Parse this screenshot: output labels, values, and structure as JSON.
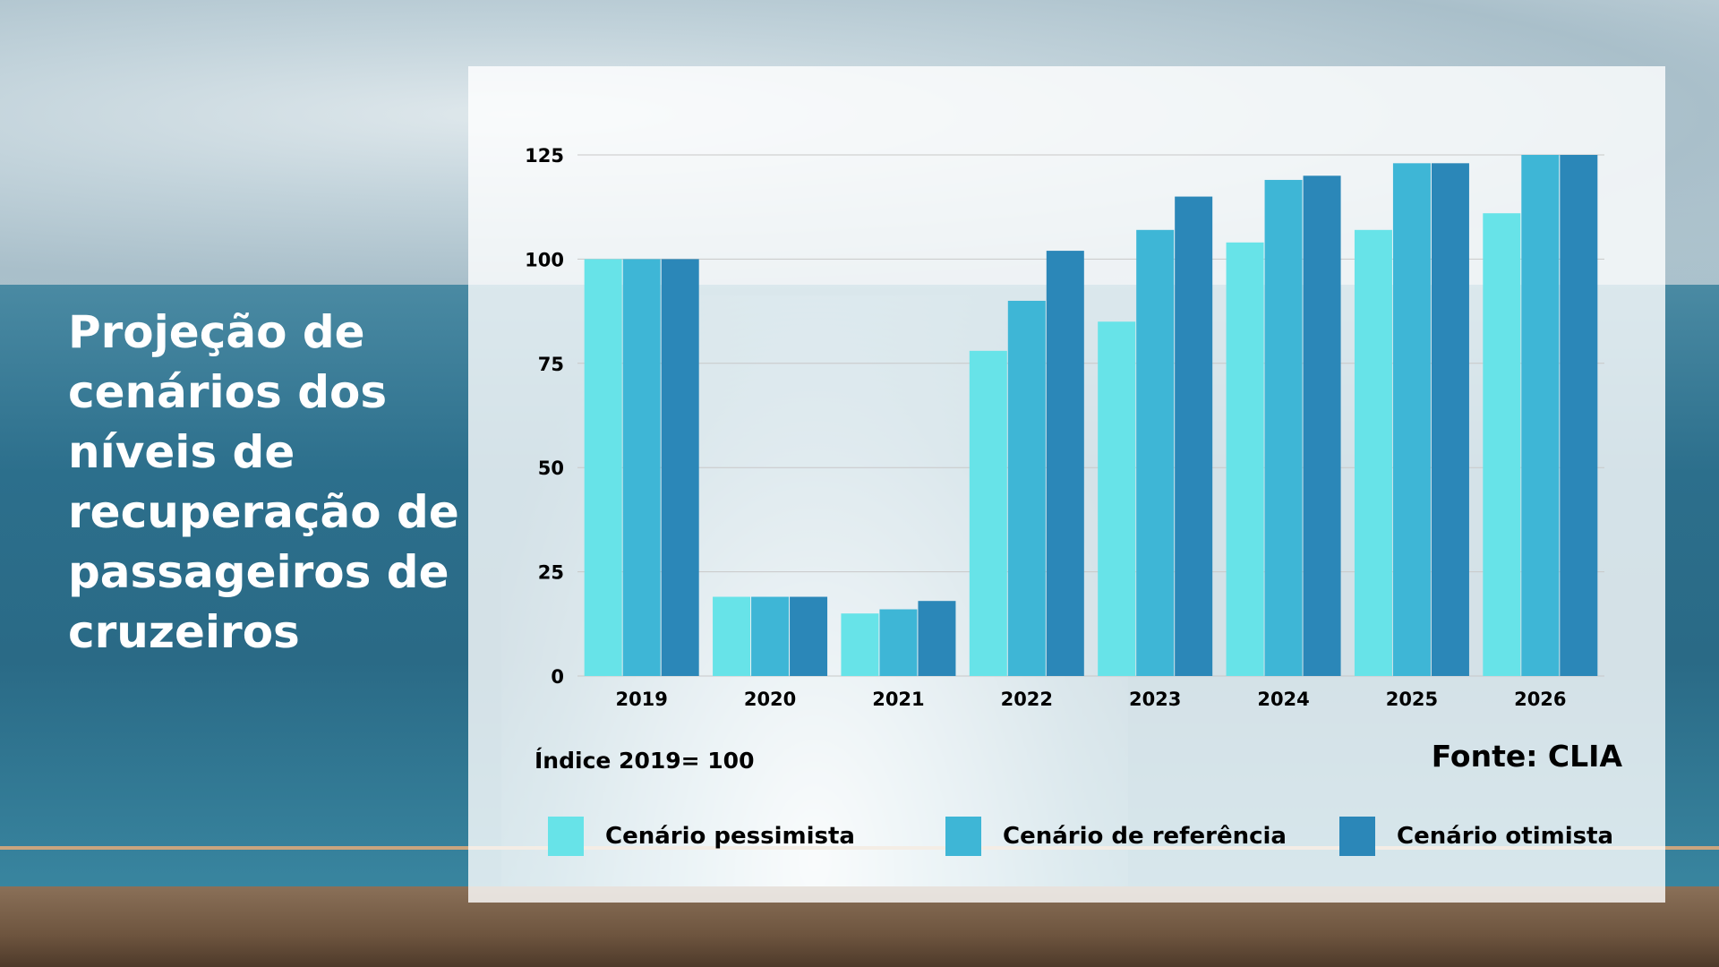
{
  "slide": {
    "title": "Projeção de cenários dos níveis de recuperação de passageiros de cruzeiros",
    "note": "Índice 2019= 100",
    "source": "Fonte: CLIA"
  },
  "colors": {
    "pessimista": "#67e3e8",
    "referencia": "#3eb6d6",
    "otimista": "#2b87b8",
    "grid": "#c8c8c8"
  },
  "chart_data": {
    "type": "bar",
    "title": "Projeção de cenários dos níveis de recuperação de passageiros de cruzeiros",
    "xlabel": "",
    "ylabel": "",
    "categories": [
      "2019",
      "2020",
      "2021",
      "2022",
      "2023",
      "2024",
      "2025",
      "2026"
    ],
    "yticks": [
      "0",
      "25",
      "50",
      "75",
      "100",
      "125"
    ],
    "ylim": [
      0,
      125
    ],
    "grid": true,
    "legend_position": "bottom",
    "series": [
      {
        "name": "Cenário pessimista",
        "values": [
          100,
          19,
          15,
          78,
          85,
          104,
          107,
          111
        ]
      },
      {
        "name": "Cenário de referência",
        "values": [
          100,
          19,
          16,
          90,
          107,
          119,
          123,
          125
        ]
      },
      {
        "name": "Cenário otimista",
        "values": [
          100,
          19,
          18,
          102,
          115,
          120,
          123,
          125
        ]
      }
    ]
  }
}
